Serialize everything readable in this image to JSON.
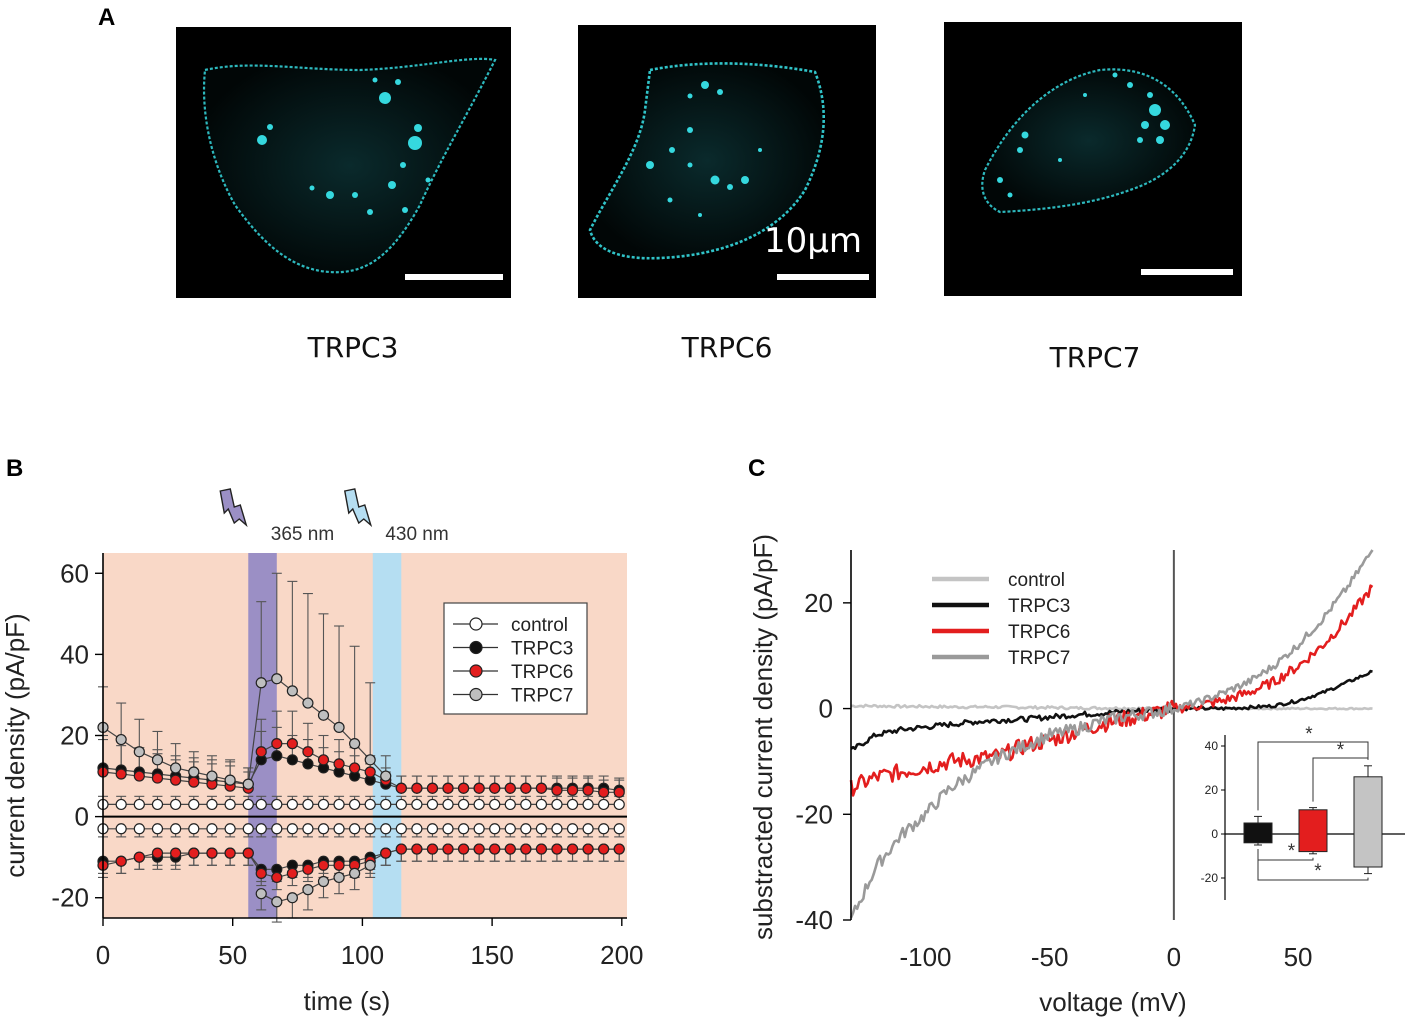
{
  "panel_a": {
    "letter": "A",
    "images": [
      {
        "label": "TRPC3"
      },
      {
        "label": "TRPC6",
        "scale_text": "10μm"
      },
      {
        "label": "TRPC7"
      }
    ],
    "stain_color": "#35d8de"
  },
  "chart_data": [
    {
      "type": "line",
      "panel": "B",
      "xlabel": "time (s)",
      "ylabel": "current density (pA/pF)",
      "xlim": [
        0,
        202
      ],
      "ylim": [
        -25,
        65
      ],
      "xticks": [
        0,
        50,
        100,
        150,
        200
      ],
      "yticks": [
        -20,
        0,
        20,
        40,
        60
      ],
      "shaded_intervals": [
        {
          "from": 0,
          "to": 202,
          "color": "#f9d8c7",
          "name": "background"
        },
        {
          "from": 56,
          "to": 67,
          "color": "#9b8fc5",
          "name": "uv",
          "label": "365 nm"
        },
        {
          "from": 104,
          "to": 115,
          "color": "#b5def2",
          "name": "blue",
          "label": "430 nm"
        }
      ],
      "x": [
        0,
        7,
        14,
        21,
        28,
        35,
        42,
        49,
        56,
        61,
        67,
        73,
        79,
        85,
        91,
        97,
        103,
        109,
        115,
        121,
        127,
        133,
        139,
        145,
        151,
        157,
        163,
        169,
        175,
        181,
        187,
        193,
        199
      ],
      "series": [
        {
          "name": "control",
          "fill": "#ffffff",
          "pos": [
            3,
            3,
            3,
            3,
            3,
            3,
            3,
            3,
            3,
            3,
            3,
            3,
            3,
            3,
            3,
            3,
            3,
            3,
            3,
            3,
            3,
            3,
            3,
            3,
            3,
            3,
            3,
            3,
            3,
            3,
            3,
            3,
            3
          ],
          "neg": [
            -3,
            -3,
            -3,
            -3,
            -3,
            -3,
            -3,
            -3,
            -3,
            -3,
            -3,
            -3,
            -3,
            -3,
            -3,
            -3,
            -3,
            -3,
            -3,
            -3,
            -3,
            -3,
            -3,
            -3,
            -3,
            -3,
            -3,
            -3,
            -3,
            -3,
            -3,
            -3,
            -3
          ],
          "err_pos": [
            2,
            2,
            2,
            2,
            2,
            2,
            2,
            2,
            2,
            2,
            2,
            2,
            2,
            2,
            2,
            2,
            2,
            2,
            2,
            2,
            2,
            2,
            2,
            2,
            2,
            2,
            2,
            2,
            2,
            2,
            2,
            2,
            2
          ],
          "err_neg": [
            2,
            2,
            2,
            2,
            2,
            2,
            2,
            2,
            2,
            2,
            2,
            2,
            2,
            2,
            2,
            2,
            2,
            2,
            2,
            2,
            2,
            2,
            2,
            2,
            2,
            2,
            2,
            2,
            2,
            2,
            2,
            2,
            2
          ]
        },
        {
          "name": "TRPC3",
          "fill": "#111111",
          "pos": [
            12,
            11.5,
            11,
            10.5,
            10,
            9.5,
            9,
            8.5,
            8,
            14,
            15,
            14,
            13,
            12,
            11,
            10,
            9,
            8,
            7,
            7,
            7,
            7,
            7,
            7,
            7,
            7,
            7,
            7,
            7,
            7,
            7,
            7,
            6.5
          ],
          "neg": [
            -11,
            -11,
            -10,
            -10,
            -10,
            -9,
            -9,
            -9,
            -9,
            -13,
            -13,
            -12,
            -12,
            -11,
            -11,
            -11,
            -10,
            -9,
            -8,
            -8,
            -8,
            -8,
            -8,
            -8,
            -8,
            -8,
            -8,
            -8,
            -8,
            -8,
            -8,
            -8,
            -8
          ],
          "err_pos": [
            8,
            7,
            6,
            6,
            5,
            5,
            5,
            5,
            4,
            7,
            7,
            6,
            6,
            5,
            5,
            5,
            4,
            3,
            3,
            3,
            3,
            3,
            3,
            3,
            3,
            3,
            3,
            3,
            3,
            3,
            3,
            3,
            3
          ],
          "err_neg": [
            3,
            3,
            3,
            3,
            3,
            3,
            3,
            3,
            3,
            3,
            3,
            3,
            3,
            3,
            3,
            3,
            3,
            3,
            3,
            3,
            3,
            3,
            3,
            3,
            3,
            3,
            3,
            3,
            3,
            3,
            3,
            3,
            3
          ]
        },
        {
          "name": "TRPC6",
          "fill": "#e31e1e",
          "pos": [
            11,
            10.5,
            10,
            9.5,
            9,
            8.5,
            8,
            7.5,
            7,
            16,
            18,
            18,
            16,
            14,
            13,
            12,
            11,
            9,
            7,
            7,
            7,
            7,
            7,
            7,
            7,
            7,
            7,
            7,
            6.5,
            6.5,
            6.5,
            6,
            6
          ],
          "neg": [
            -12,
            -11,
            -10,
            -9,
            -9,
            -9,
            -9,
            -9,
            -9,
            -14,
            -15,
            -14,
            -13,
            -12,
            -12,
            -12,
            -11,
            -9,
            -8,
            -8,
            -8,
            -8,
            -8,
            -8,
            -8,
            -8,
            -8,
            -8,
            -8,
            -8,
            -8,
            -8,
            -8
          ],
          "err_pos": [
            8,
            7,
            6,
            6,
            5,
            5,
            5,
            5,
            4,
            8,
            8,
            8,
            7,
            6,
            6,
            5,
            4,
            3,
            3,
            3,
            3,
            3,
            3,
            3,
            3,
            3,
            3,
            3,
            3,
            3,
            3,
            3,
            3
          ],
          "err_neg": [
            3,
            3,
            3,
            3,
            3,
            3,
            3,
            3,
            3,
            3,
            3,
            3,
            3,
            3,
            3,
            3,
            3,
            3,
            3,
            3,
            3,
            3,
            3,
            3,
            3,
            3,
            3,
            3,
            3,
            3,
            3,
            3,
            3
          ]
        },
        {
          "name": "TRPC7",
          "fill": "#bfbfbf",
          "pos": [
            22,
            19,
            16,
            14,
            12,
            11,
            10,
            9,
            8,
            33,
            34,
            31,
            28,
            25,
            22,
            18,
            14,
            10,
            null,
            null,
            null,
            null,
            null,
            null,
            null,
            null,
            null,
            null,
            null,
            null,
            null,
            null,
            null
          ],
          "neg": [
            null,
            null,
            null,
            null,
            null,
            null,
            null,
            null,
            null,
            -19,
            -21,
            -20,
            -18,
            -16,
            -15,
            -14,
            -12,
            null,
            null,
            null,
            null,
            null,
            null,
            null,
            null,
            null,
            null,
            null,
            null,
            null,
            null,
            null,
            null
          ],
          "err_pos": [
            10,
            9,
            8,
            7,
            6,
            5,
            5,
            5,
            4,
            20,
            26,
            27,
            27,
            25,
            25,
            24,
            19,
            5,
            0,
            0,
            0,
            0,
            0,
            0,
            0,
            0,
            0,
            0,
            0,
            0,
            0,
            0,
            0
          ],
          "err_neg": [
            0,
            0,
            0,
            0,
            0,
            0,
            0,
            0,
            0,
            4,
            5,
            5,
            5,
            4,
            4,
            4,
            3,
            0,
            0,
            0,
            0,
            0,
            0,
            0,
            0,
            0,
            0,
            0,
            0,
            0,
            0,
            0,
            0
          ]
        }
      ],
      "legend": [
        "control",
        "TRPC3",
        "TRPC6",
        "TRPC7"
      ],
      "legend_position": "top-right"
    },
    {
      "type": "line",
      "panel": "C",
      "xlabel": "voltage (mV)",
      "ylabel": "substracted current density (pA/pF)",
      "xlim": [
        -130,
        83
      ],
      "ylim": [
        -40,
        30
      ],
      "xticks": [
        -100,
        -50,
        0,
        50
      ],
      "yticks": [
        -40,
        -20,
        0,
        20
      ],
      "x": [
        -130,
        -120,
        -110,
        -100,
        -90,
        -80,
        -70,
        -60,
        -50,
        -40,
        -30,
        -20,
        -10,
        0,
        10,
        20,
        30,
        40,
        50,
        60,
        70,
        80
      ],
      "series": [
        {
          "name": "control",
          "color": "#c4c4c4",
          "y": [
            0.5,
            0.5,
            0.4,
            0.4,
            0.3,
            0.3,
            0.3,
            0.2,
            0.2,
            0.1,
            0.1,
            0.1,
            0,
            0,
            0,
            0,
            0,
            0,
            0,
            0,
            0,
            0
          ]
        },
        {
          "name": "TRPC3",
          "color": "#111111",
          "y": [
            -8,
            -5,
            -4,
            -3.5,
            -3,
            -2.5,
            -2.2,
            -2,
            -1.6,
            -1.2,
            -0.9,
            -0.6,
            -0.3,
            0,
            0,
            0,
            0.2,
            0.5,
            1.5,
            3,
            5,
            7
          ]
        },
        {
          "name": "TRPC6",
          "color": "#e31e1e",
          "y": [
            -15,
            -13,
            -12,
            -11,
            -10,
            -9.5,
            -9,
            -7,
            -6,
            -4.5,
            -3,
            -2,
            -1,
            0,
            0.6,
            1.5,
            3,
            5,
            8,
            12,
            17,
            23
          ]
        },
        {
          "name": "TRPC7",
          "color": "#9a9a9a",
          "y": [
            -40,
            -30,
            -24,
            -20,
            -15,
            -12,
            -9,
            -7,
            -5,
            -4,
            -2.5,
            -1.5,
            -0.8,
            0,
            1.2,
            3,
            5,
            8,
            12,
            17,
            23,
            30
          ]
        }
      ],
      "legend": [
        "control",
        "TRPC3",
        "TRPC6",
        "TRPC7"
      ],
      "legend_position": "top-left",
      "inset": {
        "type": "bar",
        "ylim": [
          -30,
          45
        ],
        "yticks": [
          -20,
          0,
          20,
          40
        ],
        "bars": [
          {
            "name": "TRPC3",
            "color": "#111111",
            "pos": 5,
            "neg": -4,
            "err_pos": 3,
            "err_neg": 1
          },
          {
            "name": "TRPC6",
            "color": "#e31e1e",
            "pos": 11,
            "neg": -8,
            "err_pos": 1,
            "err_neg": 1
          },
          {
            "name": "TRPC7",
            "color": "#c4c4c4",
            "pos": 26,
            "neg": -15,
            "err_pos": 5,
            "err_neg": 3
          }
        ],
        "significance": [
          {
            "from": 0,
            "to": 2,
            "side": "pos",
            "label": "*"
          },
          {
            "from": 1,
            "to": 2,
            "side": "pos",
            "label": "*"
          },
          {
            "from": 0,
            "to": 1,
            "side": "neg",
            "label": "*"
          },
          {
            "from": 0,
            "to": 2,
            "side": "neg",
            "label": "*"
          }
        ]
      }
    }
  ]
}
